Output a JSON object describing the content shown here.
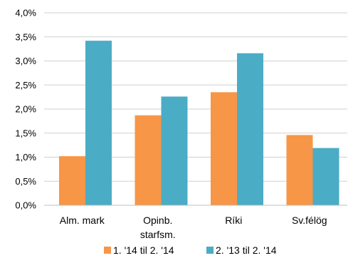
{
  "chart_data": {
    "type": "bar",
    "categories": [
      [
        "Alm. mark"
      ],
      [
        "Opinb.",
        "starfsm."
      ],
      [
        "Ríki"
      ],
      [
        "Sv.félög"
      ]
    ],
    "series": [
      {
        "name": "1. '14 til 2. '14",
        "values": [
          1.02,
          1.87,
          2.35,
          1.46
        ],
        "color": "#F79646"
      },
      {
        "name": "2. '13 til 2. '14",
        "values": [
          3.42,
          2.26,
          3.16,
          1.19
        ],
        "color": "#4BACC6"
      }
    ],
    "y_ticks": [
      "0,0%",
      "0,5%",
      "1,0%",
      "1,5%",
      "2,0%",
      "2,5%",
      "3,0%",
      "3,5%",
      "4,0%"
    ],
    "ylim": [
      0,
      4.0
    ],
    "grid": true,
    "legend_position": "bottom"
  }
}
